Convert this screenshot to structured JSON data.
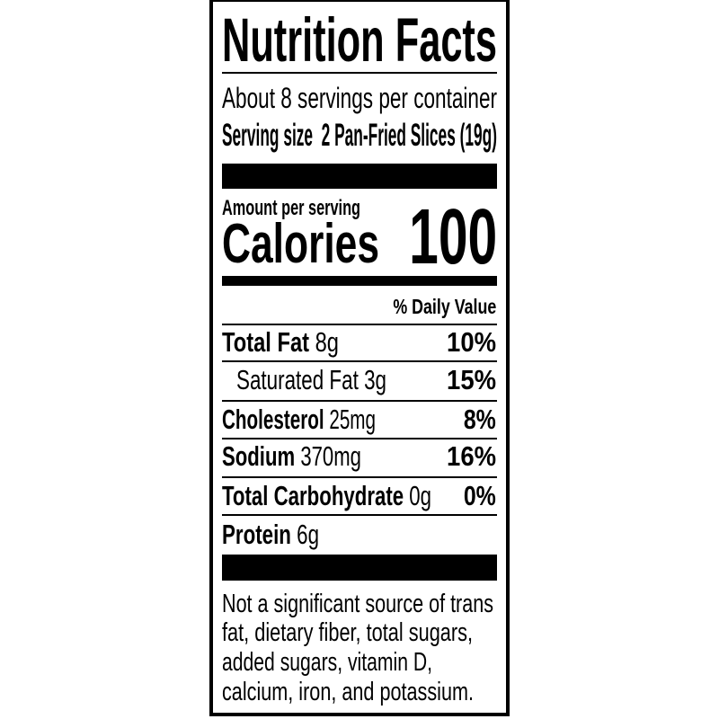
{
  "title": "Nutrition Facts",
  "servings_per_container": "About 8 servings per container",
  "serving_size": {
    "label": "Serving size",
    "value": "2 Pan-Fried Slices (19g)"
  },
  "amount_per_serving": "Amount per serving",
  "calories": {
    "label": "Calories",
    "value": "100"
  },
  "daily_value_header": "% Daily Value",
  "nutrients": [
    {
      "label": "Total Fat",
      "amount": "8g",
      "dv": "10%"
    },
    {
      "label": "Saturated Fat",
      "amount": "3g",
      "dv": "15%"
    },
    {
      "label": "Cholesterol",
      "amount": "25mg",
      "dv": "8%"
    },
    {
      "label": "Sodium",
      "amount": "370mg",
      "dv": "16%"
    },
    {
      "label": "Total Carbohydrate",
      "amount": "0g",
      "dv": "0%"
    },
    {
      "label": "Protein",
      "amount": "6g"
    }
  ],
  "footnote_lines": [
    "Not a significant source of trans",
    "fat, dietary fiber, total sugars,",
    "added sugars, vitamin D,",
    "calcium, iron, and potassium."
  ]
}
